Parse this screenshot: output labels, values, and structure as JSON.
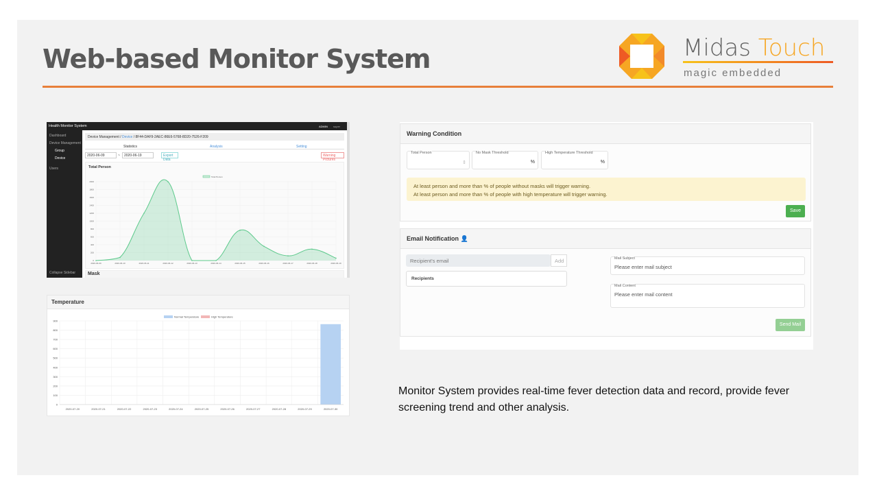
{
  "slide": {
    "title": "Web-based Monitor System",
    "description": "Monitor System provides real-time fever detection data and record, provide fever screening trend and other analysis."
  },
  "logo": {
    "name_part1": "Midas",
    "name_part2": "Touch",
    "tagline": "magic embedded",
    "colors": [
      "#f7c21a",
      "#f6a623",
      "#ee5a24"
    ]
  },
  "dashboard": {
    "app_title": "Health Monitor System",
    "role": "ADMIN",
    "user": "super",
    "sidebar": [
      "Dashboard",
      "Device Management",
      "Group",
      "Device",
      "Users",
      "Collapse Sidebar"
    ],
    "breadcrumb": {
      "root": "Device Management /",
      "link": "Device",
      "rest": "/ 8F44-DAF9-2AEC-86E6-5768-8D20-7526-F209"
    },
    "tabs": [
      "Statistics",
      "Analysis",
      "Setting"
    ],
    "date_from": "2020-06-09",
    "date_to": "2020-06-19",
    "separator": "~",
    "export_label": "Export Data",
    "warning_label": "Warning Pictures",
    "card_title": "Total Person",
    "next_card_title": "Mask"
  },
  "chart_data": [
    {
      "type": "area",
      "title": "Total Person",
      "series": [
        {
          "name": "Total Person",
          "values": [
            0,
            80,
            1200,
            2000,
            0,
            0,
            770,
            360,
            120,
            290,
            60
          ]
        }
      ],
      "x": [
        "2020-06-09",
        "2020-06-10",
        "2020-06-11",
        "2020-06-12",
        "2020-06-13",
        "2020-06-14",
        "2020-06-15",
        "2020-06-16",
        "2020-06-17",
        "2020-06-18",
        "2020-06-19"
      ],
      "ylim": [
        0,
        2000
      ],
      "yticks": [
        0,
        200,
        400,
        600,
        800,
        1000,
        1200,
        1400,
        1600,
        1800,
        2000
      ],
      "grid": true,
      "legend": "top",
      "color": "#5cc98b"
    },
    {
      "type": "bar",
      "title": "Temperature",
      "categories": [
        "2020-07-20",
        "2020-07-21",
        "2020-07-22",
        "2020-07-23",
        "2020-07-24",
        "2020-07-25",
        "2020-07-26",
        "2020-07-27",
        "2020-07-28",
        "2020-07-29",
        "2020-07-30"
      ],
      "series": [
        {
          "name": "Normal Temperature",
          "values": [
            0,
            0,
            0,
            0,
            0,
            0,
            0,
            0,
            0,
            0,
            865
          ],
          "color": "#b6d2f2"
        },
        {
          "name": "High Temperature",
          "values": [
            0,
            0,
            0,
            0,
            0,
            0,
            0,
            0,
            0,
            0,
            0
          ],
          "color": "#f2b6b6"
        }
      ],
      "ylim": [
        0,
        900
      ],
      "yticks": [
        0,
        100,
        200,
        300,
        400,
        500,
        600,
        700,
        800,
        900
      ],
      "grid": true,
      "legend": "top"
    }
  ],
  "warning": {
    "title": "Warning Condition",
    "fields": [
      "Total Person",
      "No Mask Threshold",
      "High Temperature Threshold"
    ],
    "unit": "%",
    "line1": "At least person and more than % of people without masks will trigger warning.",
    "line2": "At least person and more than % of people with high temperature will trigger warning.",
    "save": "Save"
  },
  "email": {
    "title": "Email Notification",
    "recipient_placeholder": "Recipient's email",
    "add": "Add",
    "recipients": "Recipients",
    "subject_label": "Mail Subject",
    "subject_placeholder": "Please enter mail subject",
    "content_label": "Mail Content",
    "content_placeholder": "Please enter mail content",
    "send": "Send Mail"
  }
}
